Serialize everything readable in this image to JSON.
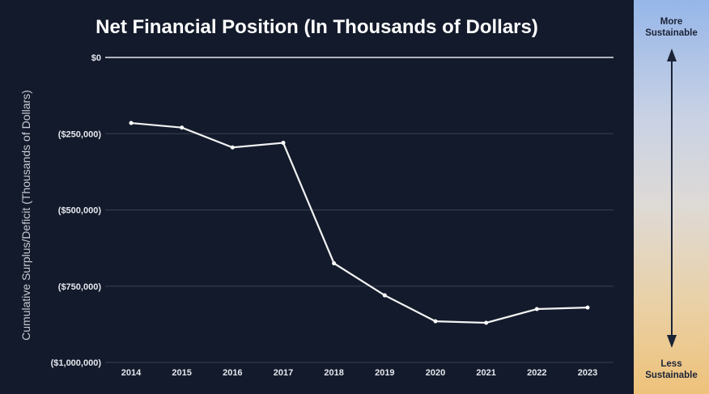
{
  "title": "Net Financial Position (In Thousands of Dollars)",
  "y_axis_label": "Cumulative Surplus/Deficit (Thousands of Dollars)",
  "sustainability_scale": {
    "top_line1": "More",
    "top_line2": "Sustainable",
    "bottom_line1": "Less",
    "bottom_line2": "Sustainable"
  },
  "colors": {
    "background": "#131a2b",
    "line": "#f2f2f2",
    "scale_top": "#96b6e9",
    "scale_bottom": "#eec27a"
  },
  "chart_data": {
    "type": "line",
    "title": "Net Financial Position (In Thousands of Dollars)",
    "xlabel": "",
    "ylabel": "Cumulative Surplus/Deficit (Thousands of Dollars)",
    "categories": [
      "2014",
      "2015",
      "2016",
      "2017",
      "2018",
      "2019",
      "2020",
      "2021",
      "2022",
      "2023"
    ],
    "series": [
      {
        "values": [
          -215000,
          -230000,
          -295000,
          -280000,
          -675000,
          -780000,
          -865000,
          -870000,
          -825000,
          -820000
        ]
      }
    ],
    "ylim": [
      -1000000,
      0
    ],
    "y_ticks": [
      0,
      -250000,
      -500000,
      -750000,
      -1000000
    ],
    "y_tick_labels": [
      "$0",
      "($250,000)",
      "($500,000)",
      "($750,000)",
      "($1,000,000)"
    ],
    "grid": true,
    "legend": "none"
  }
}
